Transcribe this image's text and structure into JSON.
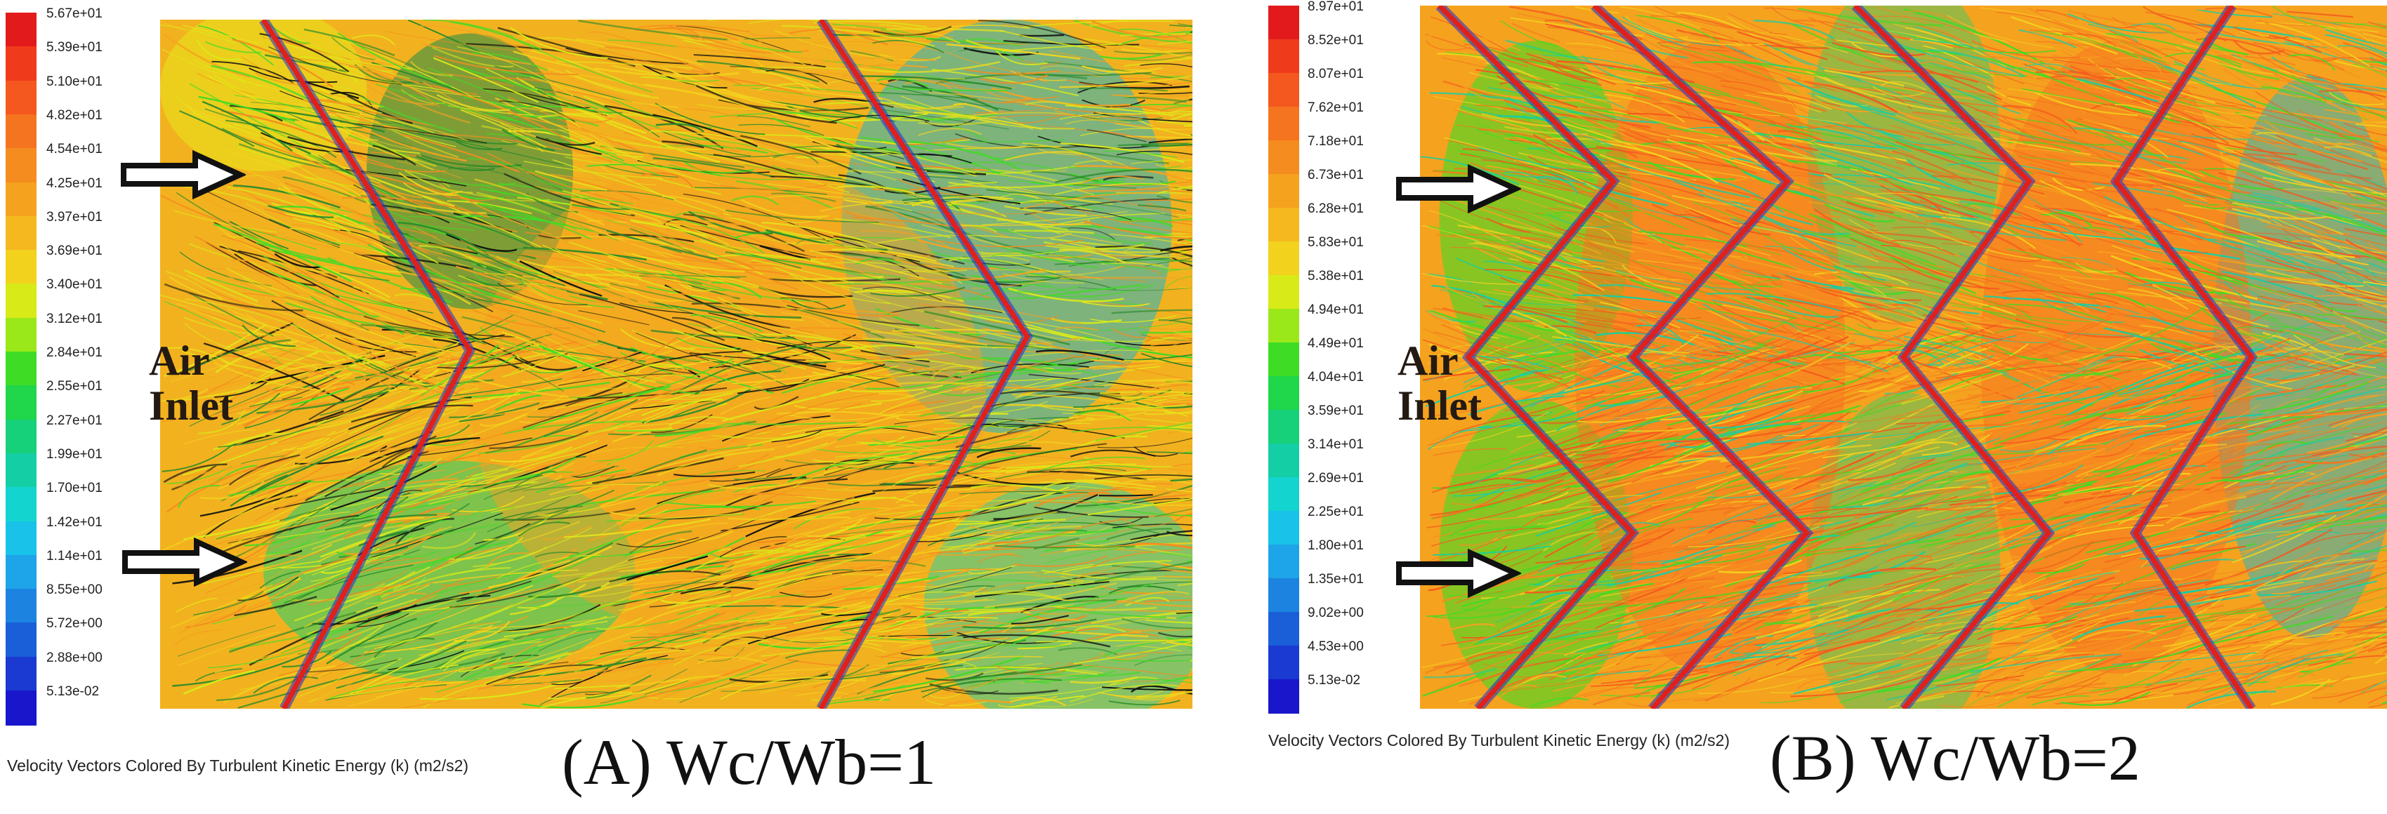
{
  "panels": [
    {
      "id": "A",
      "caption": "(A) Wc/Wb=1",
      "units_label": "Velocity Vectors Colored By Turbulent Kinetic Energy (k) (m2/s2)",
      "inlet_label": "Air\nInlet",
      "legend_labels": [
        "5.67e+01",
        "5.39e+01",
        "5.10e+01",
        "4.82e+01",
        "4.54e+01",
        "4.25e+01",
        "3.97e+01",
        "3.69e+01",
        "3.40e+01",
        "3.12e+01",
        "2.84e+01",
        "2.55e+01",
        "2.27e+01",
        "1.99e+01",
        "1.70e+01",
        "1.42e+01",
        "1.14e+01",
        "8.55e+00",
        "5.72e+00",
        "2.88e+00",
        "5.13e-02"
      ]
    },
    {
      "id": "B",
      "caption": "(B) Wc/Wb=2",
      "units_label": "Velocity Vectors Colored By Turbulent Kinetic Energy (k) (m2/s2)",
      "inlet_label": "Air\nInlet",
      "legend_labels": [
        "8.97e+01",
        "8.52e+01",
        "8.07e+01",
        "7.62e+01",
        "7.18e+01",
        "6.73e+01",
        "6.28e+01",
        "5.83e+01",
        "5.38e+01",
        "4.94e+01",
        "4.49e+01",
        "4.04e+01",
        "3.59e+01",
        "3.14e+01",
        "2.69e+01",
        "2.25e+01",
        "1.80e+01",
        "1.35e+01",
        "9.02e+00",
        "4.53e+00",
        "5.13e-02"
      ]
    }
  ],
  "colormap": [
    "#e31a1c",
    "#f03a1c",
    "#f4581e",
    "#f5741f",
    "#f58c1f",
    "#f5a21f",
    "#f5b81f",
    "#f2d21d",
    "#d8ea18",
    "#9be81a",
    "#3fdc25",
    "#20d64a",
    "#17d07a",
    "#14cfa6",
    "#14d4d0",
    "#19c2e8",
    "#1ea4e8",
    "#1c84e0",
    "#1a5fd8",
    "#1a3ad2",
    "#1a16cc"
  ],
  "colors": {
    "arrow_stroke": "#111111",
    "arrow_fill": "#ffffff",
    "inlet_text": "#241a12"
  }
}
